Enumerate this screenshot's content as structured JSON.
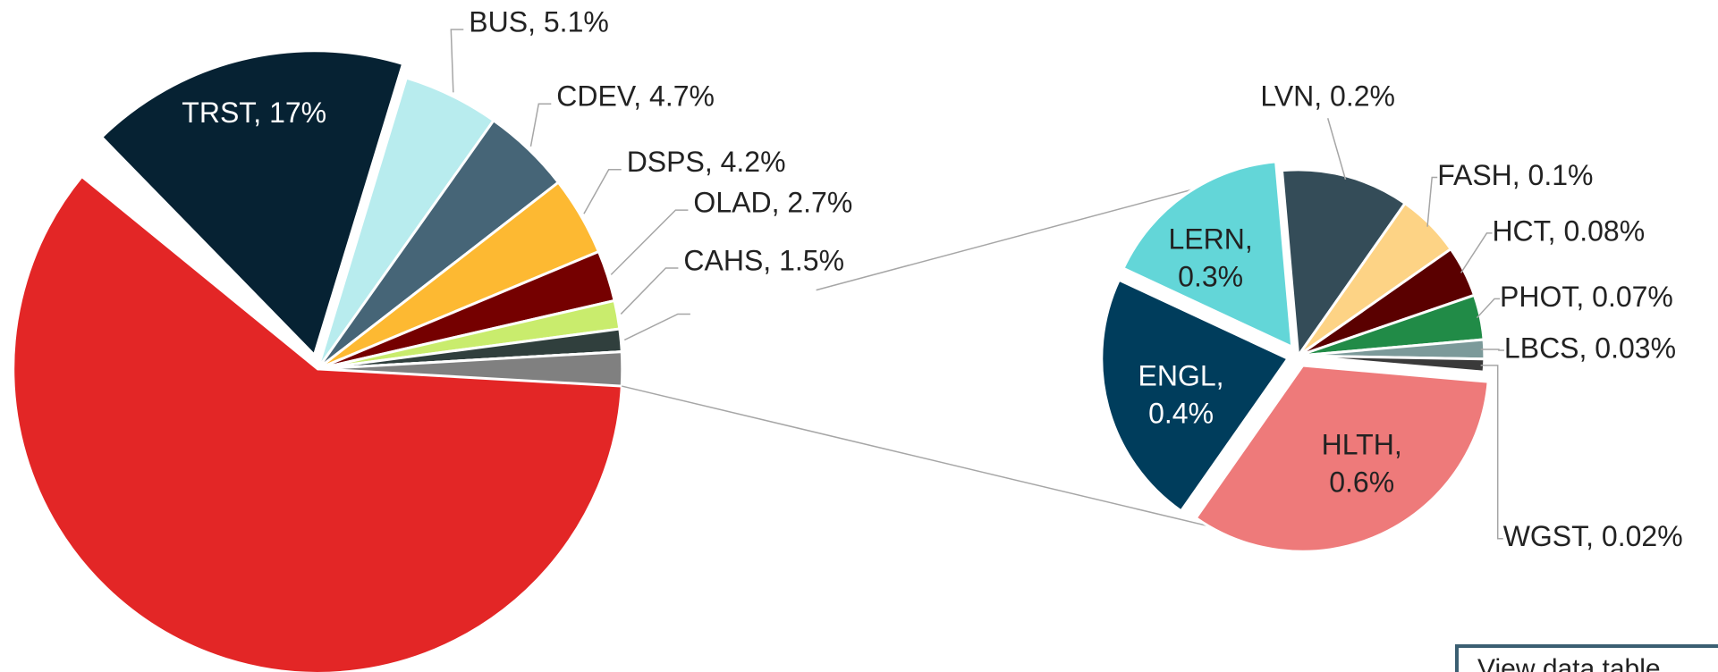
{
  "chart_data": {
    "type": "pie-of-pie",
    "categories": [
      "TRST",
      "BUS",
      "CDEV",
      "DSPS",
      "OLAD",
      "CAHS",
      null,
      null
    ],
    "values": [
      17,
      5.1,
      4.7,
      4.2,
      2.7,
      1.5,
      1.2,
      61.8
    ],
    "value_labels": [
      "TRST, 17%",
      "BUS, 5.1%",
      "CDEV, 4.7%",
      "DSPS, 4.2%",
      "OLAD, 2.7%",
      "CAHS, 1.5%",
      null,
      null
    ],
    "colors": [
      "#062233",
      "#b8ecee",
      "#466577",
      "#fdb932",
      "#750000",
      "#c9ec6d",
      "#303f3d",
      "#e32626"
    ],
    "other_color": "#808080",
    "secondary": {
      "categories": [
        "LVN",
        "FASH",
        "HCT",
        "PHOT",
        "LBCS",
        "WGST",
        "HLTH",
        "ENGL",
        "LERN"
      ],
      "values": [
        0.2,
        0.1,
        0.08,
        0.07,
        0.03,
        0.02,
        0.6,
        0.4,
        0.3
      ],
      "value_labels": [
        "LVN, 0.2%",
        "FASH, 0.1%",
        "HCT, 0.08%",
        "PHOT, 0.07%",
        "LBCS, 0.03%",
        "WGST, 0.02%",
        "HLTH, 0.6%",
        "ENGL, 0.4%",
        "LERN, 0.3%"
      ],
      "colors": [
        "#344c58",
        "#fdd385",
        "#5a0000",
        "#218b47",
        "#7c9a9a",
        "#3a3a3a",
        "#ee7a7a",
        "#003d5c",
        "#63d6d8"
      ]
    }
  },
  "button": {
    "label": "View data table"
  }
}
